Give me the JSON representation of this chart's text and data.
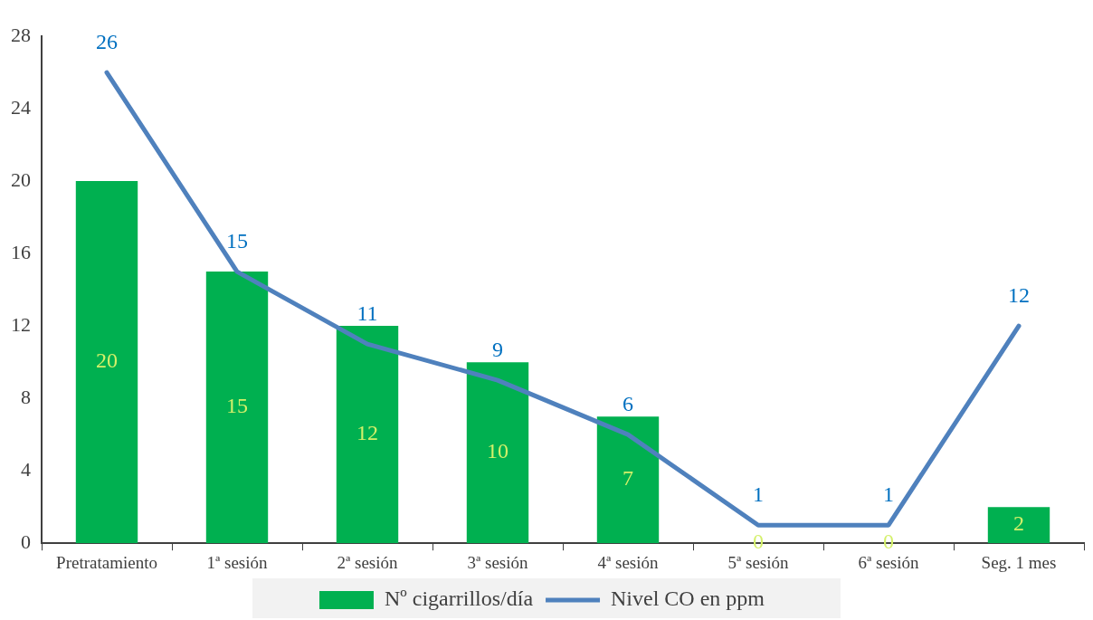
{
  "chart_data": {
    "type": "bar",
    "categories": [
      "Pretratamiento",
      "1ª sesión",
      "2ª sesión",
      "3ª sesión",
      "4ª sesión",
      "5ª sesión",
      "6ª sesión",
      "Seg. 1 mes"
    ],
    "series": [
      {
        "name": "Nº cigarrillos/día",
        "color": "#00b050",
        "values": [
          20,
          15,
          12,
          10,
          7,
          0,
          0,
          2
        ]
      },
      {
        "name": "Nivel CO en ppm",
        "type": "line",
        "color": "#4f81bd",
        "values": [
          26,
          15,
          11,
          9,
          6,
          1,
          1,
          12
        ]
      }
    ],
    "ylim": [
      0,
      28
    ],
    "yticks": [
      0,
      4,
      8,
      12,
      16,
      20,
      24,
      28
    ],
    "grid": false,
    "legend": "bottom",
    "data_labels": true,
    "marker": "none"
  }
}
